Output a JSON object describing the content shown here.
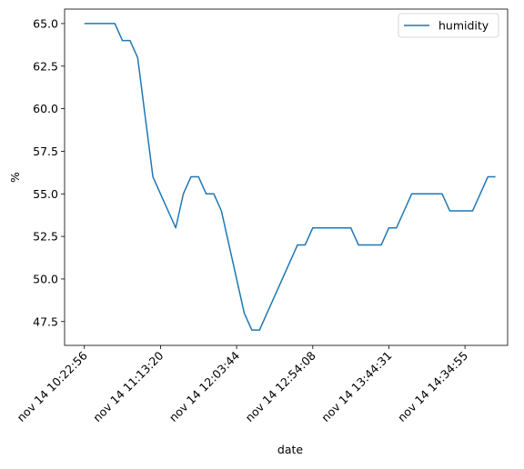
{
  "chart_data": {
    "type": "line",
    "xlabel": "date",
    "ylabel": "%",
    "categories": [
      "nov 14 10:22:56",
      null,
      null,
      null,
      null,
      null,
      null,
      null,
      null,
      null,
      "nov 14 11:13:20",
      null,
      null,
      null,
      null,
      null,
      null,
      null,
      null,
      null,
      "nov 14 12:03:44",
      null,
      null,
      null,
      null,
      null,
      null,
      null,
      null,
      null,
      "nov 14 12:54:08",
      null,
      null,
      null,
      null,
      null,
      null,
      null,
      null,
      null,
      "nov 14 13:44:31",
      null,
      null,
      null,
      null,
      null,
      null,
      null,
      null,
      null,
      "nov 14 14:34:55",
      null,
      null,
      null,
      null
    ],
    "series": [
      {
        "name": "humidity",
        "color": "#1f77b4",
        "values": [
          65,
          65,
          65,
          65,
          65,
          64,
          64,
          63,
          59.5,
          56,
          55,
          54,
          53,
          55,
          56,
          56,
          55,
          55,
          54,
          52,
          50,
          48,
          47,
          47,
          48,
          49,
          50,
          51,
          52,
          52,
          53,
          53,
          53,
          53,
          53,
          53,
          52,
          52,
          52,
          52,
          53,
          53,
          54,
          55,
          55,
          55,
          55,
          55,
          54,
          54,
          54,
          54,
          55,
          56,
          56
        ]
      }
    ],
    "xlim": [
      -2.6,
      55.6
    ],
    "ylim": [
      46.1,
      65.85
    ],
    "yticks": [
      {
        "value": 47.5,
        "label": "47.5"
      },
      {
        "value": 50,
        "label": "50.0"
      },
      {
        "value": 52.5,
        "label": "52.5"
      },
      {
        "value": 55,
        "label": "55.0"
      },
      {
        "value": 57.5,
        "label": "57.5"
      },
      {
        "value": 60,
        "label": "60.0"
      },
      {
        "value": 62.5,
        "label": "62.5"
      },
      {
        "value": 65,
        "label": "65.0"
      }
    ],
    "legend": "upper right"
  }
}
